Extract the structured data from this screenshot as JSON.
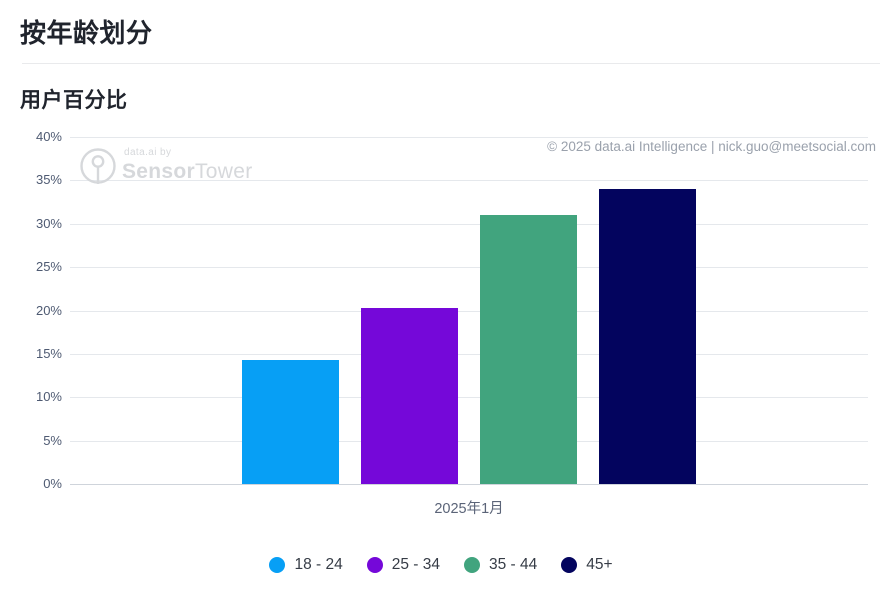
{
  "page": {
    "title": "按年龄划分",
    "subtitle": "用户百分比"
  },
  "watermark": {
    "byline": "data.ai by",
    "brand_bold": "Sensor",
    "brand_light": "Tower",
    "icon": "sensor-tower-logo-icon"
  },
  "attribution": "© 2025 data.ai Intelligence | nick.guo@meetsocial.com",
  "chart_data": {
    "type": "bar",
    "title": "按年龄划分",
    "subtitle": "用户百分比",
    "categories": [
      "2025年1月"
    ],
    "series": [
      {
        "name": "18 - 24",
        "color": "#079ff5",
        "values": [
          14.3
        ]
      },
      {
        "name": "25 - 34",
        "color": "#7508d9",
        "values": [
          20.3
        ]
      },
      {
        "name": "35 - 44",
        "color": "#41a47e",
        "values": [
          31.0
        ]
      },
      {
        "name": "45+",
        "color": "#03045e",
        "values": [
          34.0
        ]
      }
    ],
    "ylabel": "用户百分比",
    "xlabel": "",
    "ylim": [
      0,
      40
    ],
    "y_tick_step": 5,
    "y_ticks": [
      "0%",
      "5%",
      "10%",
      "15%",
      "20%",
      "25%",
      "30%",
      "35%",
      "40%"
    ],
    "grid": true,
    "legend_position": "bottom"
  }
}
